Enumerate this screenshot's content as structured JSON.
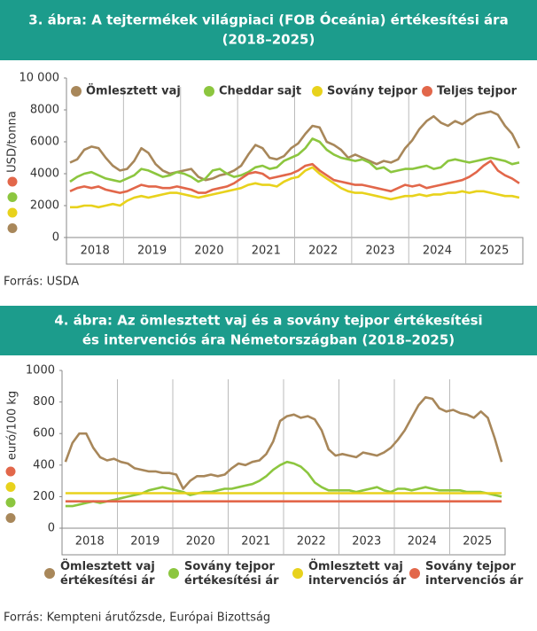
{
  "chart_data": [
    {
      "type": "line",
      "title": [
        "3. ábra: A tejtermékek világpiaci (FOB Óceánia) értékesítési ára",
        "(2018–2025)"
      ],
      "y_label": "USD/tonna",
      "source": "Forrás: USDA",
      "legend": "top",
      "categories": [
        null,
        null,
        null,
        null,
        "2018",
        null,
        null,
        null,
        null,
        null,
        null,
        null,
        "2019",
        null,
        null,
        null,
        null,
        null,
        null,
        null,
        "2020",
        null,
        null,
        null,
        null,
        null,
        null,
        null,
        "2021",
        null,
        null,
        null,
        null,
        null,
        null,
        null,
        "2022",
        null,
        null,
        null,
        null,
        null,
        null,
        null,
        "2023",
        null,
        null,
        null,
        null,
        null,
        null,
        null,
        "2024",
        null,
        null,
        null,
        null,
        null,
        null,
        null,
        "2025",
        null,
        null,
        null
      ],
      "ylim": [
        0,
        10000
      ],
      "yticks": [
        0,
        2000,
        4000,
        6000,
        8000,
        {
          "value": 10000,
          "label": "10 000"
        }
      ],
      "series": [
        {
          "name": "Ömlesztett  vaj",
          "color": "#a8875a",
          "values": [
            4700,
            4900,
            5500,
            5700,
            5600,
            5000,
            4500,
            4200,
            4300,
            4800,
            5600,
            5300,
            4600,
            4200,
            4000,
            4100,
            4200,
            4300,
            3800,
            3600,
            3700,
            3900,
            4000,
            4200,
            4500,
            5200,
            5800,
            5600,
            5000,
            4900,
            5100,
            5600,
            5900,
            6500,
            7000,
            6900,
            6000,
            5800,
            5500,
            5000,
            5200,
            5000,
            4800,
            4600,
            4800,
            4700,
            4900,
            5600,
            6100,
            6800,
            7300,
            7600,
            7200,
            7000,
            7300,
            7100,
            7400,
            7700,
            7800,
            7900,
            7700,
            7000,
            6500,
            5600
          ]
        },
        {
          "name": "Cheddar sajt",
          "color": "#8cc63f",
          "values": [
            3500,
            3800,
            4000,
            4100,
            3900,
            3700,
            3600,
            3500,
            3700,
            3900,
            4300,
            4200,
            4000,
            3800,
            3900,
            4100,
            4000,
            3800,
            3500,
            3700,
            4200,
            4300,
            4000,
            3800,
            3900,
            4100,
            4400,
            4500,
            4300,
            4400,
            4800,
            5000,
            5200,
            5600,
            6200,
            6000,
            5500,
            5200,
            5000,
            4900,
            4800,
            4900,
            4700,
            4300,
            4400,
            4100,
            4200,
            4300,
            4300,
            4400,
            4500,
            4300,
            4400,
            4800,
            4900,
            4800,
            4700,
            4800,
            4900,
            5000,
            4900,
            4800,
            4600,
            4700
          ]
        },
        {
          "name": "Sovány tejpor",
          "color": "#e8d21c",
          "values": [
            1900,
            1900,
            2000,
            2000,
            1900,
            2000,
            2100,
            2000,
            2300,
            2500,
            2600,
            2500,
            2600,
            2700,
            2800,
            2800,
            2700,
            2600,
            2500,
            2600,
            2700,
            2800,
            2900,
            3000,
            3100,
            3300,
            3400,
            3300,
            3300,
            3200,
            3500,
            3700,
            3800,
            4200,
            4400,
            4000,
            3700,
            3400,
            3100,
            2900,
            2800,
            2800,
            2700,
            2600,
            2500,
            2400,
            2500,
            2600,
            2600,
            2700,
            2600,
            2700,
            2700,
            2800,
            2800,
            2900,
            2800,
            2900,
            2900,
            2800,
            2700,
            2600,
            2600,
            2500
          ]
        },
        {
          "name": "Teljes tejpor",
          "color": "#e2674a",
          "values": [
            2900,
            3100,
            3200,
            3100,
            3200,
            3000,
            2900,
            2800,
            2900,
            3100,
            3300,
            3200,
            3200,
            3100,
            3100,
            3200,
            3100,
            3000,
            2800,
            2800,
            3000,
            3100,
            3200,
            3400,
            3700,
            4000,
            4100,
            4000,
            3700,
            3800,
            3900,
            4000,
            4200,
            4500,
            4600,
            4200,
            3900,
            3600,
            3500,
            3400,
            3300,
            3300,
            3200,
            3100,
            3000,
            2900,
            3100,
            3300,
            3200,
            3300,
            3100,
            3200,
            3300,
            3400,
            3500,
            3600,
            3800,
            4100,
            4500,
            4800,
            4200,
            3900,
            3700,
            3400
          ]
        }
      ]
    },
    {
      "type": "line",
      "title": [
        "4. ábra: Az ömlesztett vaj és a sovány tejpor értékesítési",
        "és intervenciós ára Németországban (2018–2025)"
      ],
      "y_label": "euró/100 kg",
      "source": "Forrás: Kempteni árutőzsde, Európai Bizottság",
      "legend": "bottom",
      "categories": [
        null,
        null,
        null,
        null,
        "2018",
        null,
        null,
        null,
        null,
        null,
        null,
        null,
        "2019",
        null,
        null,
        null,
        null,
        null,
        null,
        null,
        "2020",
        null,
        null,
        null,
        null,
        null,
        null,
        null,
        "2021",
        null,
        null,
        null,
        null,
        null,
        null,
        null,
        "2022",
        null,
        null,
        null,
        null,
        null,
        null,
        null,
        "2023",
        null,
        null,
        null,
        null,
        null,
        null,
        null,
        "2024",
        null,
        null,
        null,
        null,
        null,
        null,
        null,
        "2025",
        null,
        null,
        null
      ],
      "ylim": [
        0,
        1000
      ],
      "yticks": [
        0,
        200,
        400,
        600,
        800,
        1000
      ],
      "series": [
        {
          "name": "Ömlesztett vaj értékesítési ár",
          "color": "#a8875a",
          "values": [
            420,
            540,
            600,
            600,
            510,
            450,
            430,
            440,
            420,
            410,
            380,
            370,
            360,
            360,
            350,
            350,
            340,
            250,
            300,
            330,
            330,
            340,
            330,
            340,
            380,
            410,
            400,
            420,
            430,
            470,
            550,
            680,
            710,
            720,
            700,
            710,
            690,
            620,
            500,
            460,
            470,
            460,
            450,
            480,
            470,
            460,
            480,
            510,
            560,
            620,
            700,
            780,
            830,
            820,
            760,
            740,
            750,
            730,
            720,
            700,
            740,
            700,
            570,
            420
          ]
        },
        {
          "name": "Sovány tejpor értékesítési ár",
          "color": "#8cc63f",
          "values": [
            140,
            140,
            150,
            160,
            170,
            160,
            170,
            180,
            190,
            200,
            210,
            220,
            240,
            250,
            260,
            250,
            240,
            230,
            210,
            220,
            230,
            230,
            240,
            250,
            250,
            260,
            270,
            280,
            300,
            330,
            370,
            400,
            420,
            410,
            390,
            350,
            290,
            260,
            240,
            240,
            240,
            240,
            230,
            240,
            250,
            260,
            240,
            230,
            250,
            250,
            240,
            250,
            260,
            250,
            240,
            240,
            240,
            240,
            230,
            230,
            230,
            220,
            210,
            200
          ]
        },
        {
          "name": "Ömlesztett vaj intervenciós ár",
          "color": "#e8d21c",
          "values": [
            222,
            222,
            222,
            222,
            222,
            222,
            222,
            222,
            222,
            222,
            222,
            222,
            222,
            222,
            222,
            222,
            222,
            222,
            222,
            222,
            222,
            222,
            222,
            222,
            222,
            222,
            222,
            222,
            222,
            222,
            222,
            222,
            222,
            222,
            222,
            222,
            222,
            222,
            222,
            222,
            222,
            222,
            222,
            222,
            222,
            222,
            222,
            222,
            222,
            222,
            222,
            222,
            222,
            222,
            222,
            222,
            222,
            222,
            222,
            222,
            222,
            222,
            222,
            222
          ]
        },
        {
          "name": "Sovány tejpor intervenciós ár",
          "color": "#e2674a",
          "values": [
            170,
            170,
            170,
            170,
            170,
            170,
            170,
            170,
            170,
            170,
            170,
            170,
            170,
            170,
            170,
            170,
            170,
            170,
            170,
            170,
            170,
            170,
            170,
            170,
            170,
            170,
            170,
            170,
            170,
            170,
            170,
            170,
            170,
            170,
            170,
            170,
            170,
            170,
            170,
            170,
            170,
            170,
            170,
            170,
            170,
            170,
            170,
            170,
            170,
            170,
            170,
            170,
            170,
            170,
            170,
            170,
            170,
            170,
            170,
            170,
            170,
            170,
            170,
            170
          ]
        }
      ]
    }
  ]
}
